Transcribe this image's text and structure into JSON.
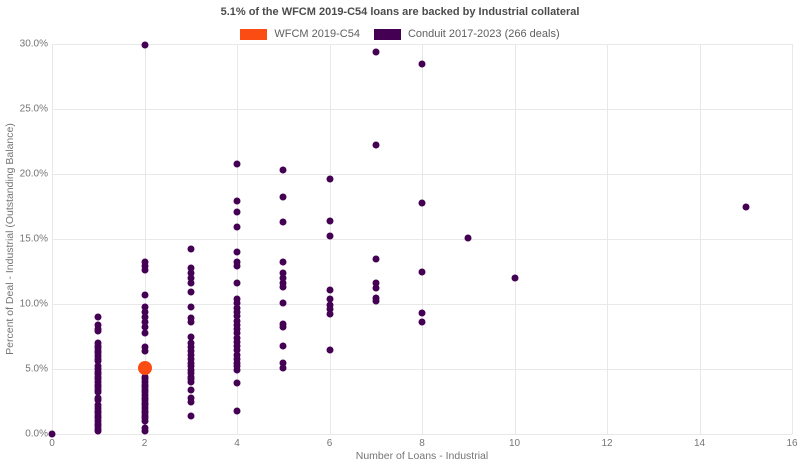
{
  "title": "5.1% of the WFCM 2019-C54 loans are backed by Industrial collateral",
  "legend": [
    {
      "label": "WFCM 2019-C54",
      "color": "#fb4d13"
    },
    {
      "label": "Conduit 2017-2023 (266 deals)",
      "color": "#440154"
    }
  ],
  "chart_data": {
    "type": "scatter",
    "title": "5.1% of the WFCM 2019-C54 loans are backed by Industrial collateral",
    "xlabel": "Number of Loans - Industrial",
    "ylabel": "Percent of Deal - Industrial (Outstanding Balance)",
    "xlim": [
      0,
      16
    ],
    "ylim": [
      0,
      30
    ],
    "x_ticks": [
      0,
      2,
      4,
      6,
      8,
      10,
      12,
      14,
      16
    ],
    "y_tick_values": [
      0,
      5,
      10,
      15,
      20,
      25,
      30
    ],
    "y_tick_labels": [
      "0.0%",
      "5.0%",
      "10.0%",
      "15.0%",
      "20.0%",
      "25.0%",
      "30.0%"
    ],
    "grid": true,
    "legend_position": "top",
    "series": [
      {
        "name": "Conduit 2017-2023 (266 deals)",
        "color": "#440154",
        "marker_size": 7,
        "points": [
          [
            0,
            0.0
          ],
          [
            1,
            9.0
          ],
          [
            1,
            8.4
          ],
          [
            1,
            8.1
          ],
          [
            1,
            7.9
          ],
          [
            1,
            7.0
          ],
          [
            1,
            6.8
          ],
          [
            1,
            6.6
          ],
          [
            1,
            6.4
          ],
          [
            1,
            6.2
          ],
          [
            1,
            6.0
          ],
          [
            1,
            5.8
          ],
          [
            1,
            5.6
          ],
          [
            1,
            5.2
          ],
          [
            1,
            5.0
          ],
          [
            1,
            4.8
          ],
          [
            1,
            4.6
          ],
          [
            1,
            4.4
          ],
          [
            1,
            4.2
          ],
          [
            1,
            4.0
          ],
          [
            1,
            3.8
          ],
          [
            1,
            3.6
          ],
          [
            1,
            3.4
          ],
          [
            1,
            3.2
          ],
          [
            1,
            2.8
          ],
          [
            1,
            2.6
          ],
          [
            1,
            2.2
          ],
          [
            1,
            2.0
          ],
          [
            1,
            1.8
          ],
          [
            1,
            1.6
          ],
          [
            1,
            1.4
          ],
          [
            1,
            1.2
          ],
          [
            1,
            1.0
          ],
          [
            1,
            0.8
          ],
          [
            1,
            0.6
          ],
          [
            1,
            0.4
          ],
          [
            1,
            0.2
          ],
          [
            2,
            29.9
          ],
          [
            2,
            13.2
          ],
          [
            2,
            12.9
          ],
          [
            2,
            12.6
          ],
          [
            2,
            10.7
          ],
          [
            2,
            9.8
          ],
          [
            2,
            9.4
          ],
          [
            2,
            9.0
          ],
          [
            2,
            8.6
          ],
          [
            2,
            8.2
          ],
          [
            2,
            7.8
          ],
          [
            2,
            6.7
          ],
          [
            2,
            6.4
          ],
          [
            2,
            5.3
          ],
          [
            2,
            4.4
          ],
          [
            2,
            4.2
          ],
          [
            2,
            4.0
          ],
          [
            2,
            3.8
          ],
          [
            2,
            3.6
          ],
          [
            2,
            3.4
          ],
          [
            2,
            3.2
          ],
          [
            2,
            3.0
          ],
          [
            2,
            2.8
          ],
          [
            2,
            2.6
          ],
          [
            2,
            2.4
          ],
          [
            2,
            2.2
          ],
          [
            2,
            2.0
          ],
          [
            2,
            1.8
          ],
          [
            2,
            1.6
          ],
          [
            2,
            1.4
          ],
          [
            2,
            1.2
          ],
          [
            2,
            1.0
          ],
          [
            2,
            0.5
          ],
          [
            2,
            0.2
          ],
          [
            3,
            14.2
          ],
          [
            3,
            12.8
          ],
          [
            3,
            12.4
          ],
          [
            3,
            12.0
          ],
          [
            3,
            11.6
          ],
          [
            3,
            10.9
          ],
          [
            3,
            9.8
          ],
          [
            3,
            8.9
          ],
          [
            3,
            8.6
          ],
          [
            3,
            7.5
          ],
          [
            3,
            7.0
          ],
          [
            3,
            6.7
          ],
          [
            3,
            6.4
          ],
          [
            3,
            6.1
          ],
          [
            3,
            5.8
          ],
          [
            3,
            5.5
          ],
          [
            3,
            5.2
          ],
          [
            3,
            4.9
          ],
          [
            3,
            4.7
          ],
          [
            3,
            4.4
          ],
          [
            3,
            4.2
          ],
          [
            3,
            4.0
          ],
          [
            3,
            3.4
          ],
          [
            3,
            2.8
          ],
          [
            3,
            2.5
          ],
          [
            3,
            1.4
          ],
          [
            4,
            20.8
          ],
          [
            4,
            17.9
          ],
          [
            4,
            17.1
          ],
          [
            4,
            15.9
          ],
          [
            4,
            14.0
          ],
          [
            4,
            13.2
          ],
          [
            4,
            12.9
          ],
          [
            4,
            11.6
          ],
          [
            4,
            10.4
          ],
          [
            4,
            10.1
          ],
          [
            4,
            9.7
          ],
          [
            4,
            9.4
          ],
          [
            4,
            9.1
          ],
          [
            4,
            8.7
          ],
          [
            4,
            8.4
          ],
          [
            4,
            8.1
          ],
          [
            4,
            7.8
          ],
          [
            4,
            7.4
          ],
          [
            4,
            7.1
          ],
          [
            4,
            6.8
          ],
          [
            4,
            6.5
          ],
          [
            4,
            6.1
          ],
          [
            4,
            5.8
          ],
          [
            4,
            5.5
          ],
          [
            4,
            5.2
          ],
          [
            4,
            4.9
          ],
          [
            4,
            3.9
          ],
          [
            4,
            1.8
          ],
          [
            5,
            20.3
          ],
          [
            5,
            18.2
          ],
          [
            5,
            16.3
          ],
          [
            5,
            13.2
          ],
          [
            5,
            12.4
          ],
          [
            5,
            12.0
          ],
          [
            5,
            11.6
          ],
          [
            5,
            11.3
          ],
          [
            5,
            10.1
          ],
          [
            5,
            8.5
          ],
          [
            5,
            8.2
          ],
          [
            5,
            6.8
          ],
          [
            5,
            5.5
          ],
          [
            5,
            5.1
          ],
          [
            6,
            19.6
          ],
          [
            6,
            16.4
          ],
          [
            6,
            15.2
          ],
          [
            6,
            11.1
          ],
          [
            6,
            10.4
          ],
          [
            6,
            9.9
          ],
          [
            6,
            9.6
          ],
          [
            6,
            9.2
          ],
          [
            6,
            6.5
          ],
          [
            7,
            29.4
          ],
          [
            7,
            22.2
          ],
          [
            7,
            13.5
          ],
          [
            7,
            11.6
          ],
          [
            7,
            11.2
          ],
          [
            7,
            10.5
          ],
          [
            7,
            10.2
          ],
          [
            8,
            28.5
          ],
          [
            8,
            17.8
          ],
          [
            8,
            12.5
          ],
          [
            8,
            9.3
          ],
          [
            8,
            8.6
          ],
          [
            9,
            15.1
          ],
          [
            10,
            12.0
          ],
          [
            15,
            17.5
          ]
        ]
      },
      {
        "name": "WFCM 2019-C54",
        "color": "#fb4d13",
        "marker_size": 14,
        "points": [
          [
            2,
            5.1
          ]
        ]
      }
    ]
  }
}
